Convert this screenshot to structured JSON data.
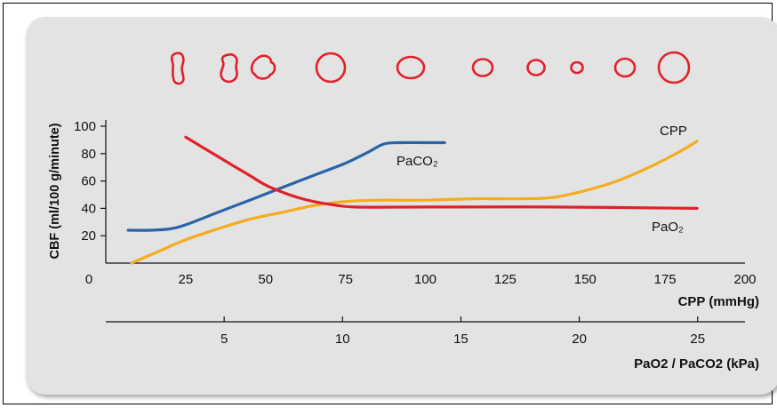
{
  "chart_data": {
    "type": "line",
    "ylabel": "CBF (ml/100 g/minute)",
    "y_ticks": [
      "20",
      "40",
      "60",
      "80",
      "100"
    ],
    "ylim": [
      0,
      100
    ],
    "x_axis_primary": {
      "label": "CPP (mmHg)",
      "ticks": [
        "0",
        "25",
        "50",
        "75",
        "100",
        "125",
        "150",
        "175",
        "200"
      ],
      "range": [
        0,
        200
      ]
    },
    "x_axis_secondary": {
      "label": "PaO2 / PaCO2 (kPa)",
      "ticks": [
        "5",
        "10",
        "15",
        "20",
        "25"
      ],
      "range": [
        0,
        27
      ]
    },
    "grid": false,
    "series": [
      {
        "name": "PaCO₂",
        "color": "#2a63a8",
        "points": [
          [
            7,
            24
          ],
          [
            14,
            24
          ],
          [
            20,
            25
          ],
          [
            25,
            28
          ],
          [
            35,
            37
          ],
          [
            45,
            46
          ],
          [
            55,
            55
          ],
          [
            65,
            64
          ],
          [
            75,
            73
          ],
          [
            82,
            81
          ],
          [
            87,
            87
          ],
          [
            92,
            88
          ],
          [
            100,
            88
          ],
          [
            106,
            88
          ]
        ]
      },
      {
        "name": "CPP",
        "color": "#f3ad1d",
        "points": [
          [
            8,
            0
          ],
          [
            15,
            7
          ],
          [
            25,
            17
          ],
          [
            35,
            25
          ],
          [
            45,
            32
          ],
          [
            55,
            37
          ],
          [
            65,
            42
          ],
          [
            75,
            45
          ],
          [
            85,
            46
          ],
          [
            100,
            46
          ],
          [
            115,
            47
          ],
          [
            130,
            47
          ],
          [
            140,
            48
          ],
          [
            150,
            53
          ],
          [
            160,
            60
          ],
          [
            170,
            70
          ],
          [
            180,
            82
          ],
          [
            185,
            89
          ]
        ]
      },
      {
        "name": "PaO₂",
        "color": "#e2202a",
        "points": [
          [
            25,
            92
          ],
          [
            30,
            85
          ],
          [
            35,
            78
          ],
          [
            40,
            71
          ],
          [
            45,
            64
          ],
          [
            50,
            57
          ],
          [
            55,
            52
          ],
          [
            60,
            48
          ],
          [
            65,
            45
          ],
          [
            70,
            43
          ],
          [
            78,
            41
          ],
          [
            100,
            41
          ],
          [
            140,
            41
          ],
          [
            185,
            40
          ]
        ]
      }
    ],
    "vessel_color": "#e2202a"
  }
}
